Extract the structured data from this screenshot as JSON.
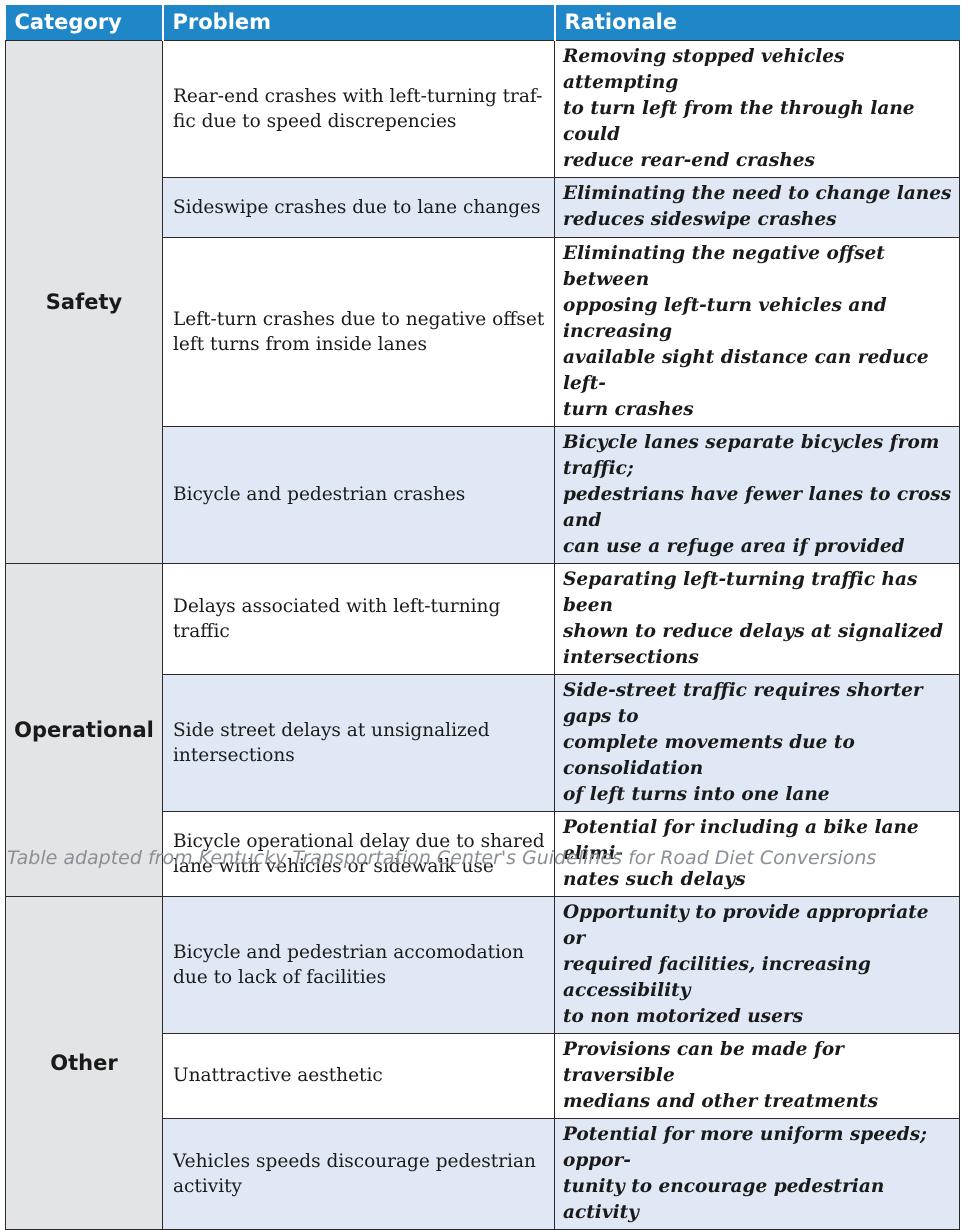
{
  "table": {
    "headers": {
      "category": "Category",
      "problem": "Problem",
      "rationale": "Rationale"
    },
    "groups": [
      {
        "category": "Safety",
        "rows": [
          {
            "problem": "Rear-end crashes with left-turning traf-\nfic due to speed discrepencies",
            "rationale": "Removing stopped vehicles attempting\nto turn left from the through lane could\nreduce rear-end crashes"
          },
          {
            "problem": "Sideswipe crashes due to lane changes",
            "rationale": "Eliminating the need to change lanes\nreduces sideswipe crashes"
          },
          {
            "problem": "Left-turn crashes due to negative offset\nleft turns from inside lanes",
            "rationale": "Eliminating the negative offset between\nopposing left-turn vehicles and increasing\navailable sight distance can reduce left-\nturn crashes"
          },
          {
            "problem": "Bicycle and pedestrian crashes",
            "rationale": "Bicycle lanes separate bicycles from traffic;\npedestrians have fewer lanes to cross and\ncan use a refuge area if provided"
          }
        ]
      },
      {
        "category": "Operational",
        "rows": [
          {
            "problem": "Delays associated with left-turning\ntraffic",
            "rationale": "Separating left-turning traffic has been\nshown to reduce delays at signalized\nintersections"
          },
          {
            "problem": "Side street delays at unsignalized\nintersections",
            "rationale": "Side-street traffic requires shorter gaps to\ncomplete movements due to consolidation\nof left turns into one lane"
          },
          {
            "problem": "Bicycle operational delay due to shared\nlane with vehicles or sidewalk use",
            "rationale": "Potential for including a bike lane elimi-\nnates such delays"
          }
        ]
      },
      {
        "category": "Other",
        "rows": [
          {
            "problem": "Bicycle and pedestrian accomodation\ndue to lack of facilities",
            "rationale": "Opportunity to provide appropriate or\nrequired facilities, increasing accessibility\nto non motorized users"
          },
          {
            "problem": "Unattractive aesthetic",
            "rationale": "Provisions can be made for traversible\nmedians and other treatments"
          },
          {
            "problem": "Vehicles speeds discourage pedestrian\nactivity",
            "rationale": "Potential for more uniform speeds; oppor-\ntunity to encourage pedestrian activity"
          }
        ]
      }
    ]
  },
  "caption": "Table adapted from Kentucky Transportation Center's Guidelines for Road Diet Conversions",
  "colors": {
    "header_bg": "#1f86c8",
    "category_bg": "#e3e4e6",
    "shaded_row_bg": "#dfe8f4",
    "caption_text": "#8a8f96"
  }
}
